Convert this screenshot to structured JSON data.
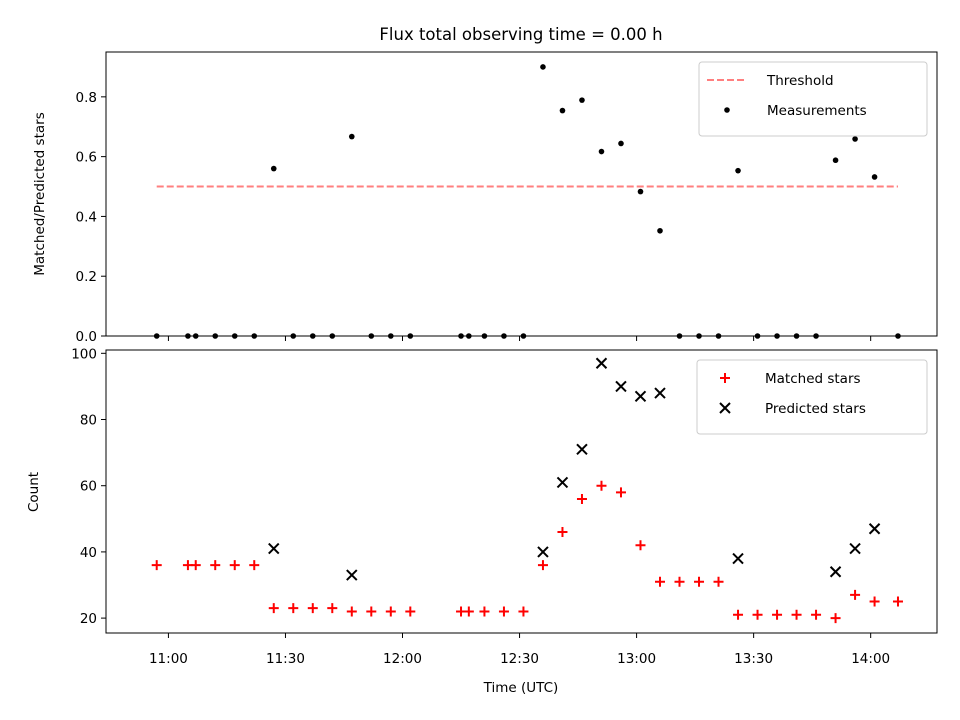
{
  "colors": {
    "threshold": "#ff7f7f",
    "measurements": "#000000",
    "matched": "#ff0000",
    "predicted": "#000000"
  },
  "chart_data": [
    {
      "type": "scatter",
      "title": "Flux total observing time = 0.00 h",
      "xlabel": "",
      "ylabel": "Matched/Predicted stars",
      "xlim": [
        "10:44",
        "14:17"
      ],
      "ylim": [
        0,
        0.95
      ],
      "yticks": [
        0.0,
        0.2,
        0.4,
        0.6,
        0.8
      ],
      "yticklabels": [
        "0.0",
        "0.2",
        "0.4",
        "0.6",
        "0.8"
      ],
      "legend": "top-right",
      "grid": false,
      "series": [
        {
          "name": "Threshold",
          "kind": "line",
          "style": "dashed",
          "x": [
            "10:57",
            "14:07"
          ],
          "y": [
            0.5,
            0.5
          ]
        },
        {
          "name": "Measurements",
          "kind": "scatter",
          "marker": "dot",
          "x": [
            "10:57",
            "11:05",
            "11:07",
            "11:12",
            "11:17",
            "11:22",
            "11:27",
            "11:32",
            "11:37",
            "11:42",
            "11:47",
            "11:52",
            "11:57",
            "12:02",
            "12:15",
            "12:17",
            "12:21",
            "12:26",
            "12:31",
            "12:36",
            "12:41",
            "12:46",
            "12:51",
            "12:56",
            "13:01",
            "13:06",
            "13:11",
            "13:16",
            "13:21",
            "13:26",
            "13:31",
            "13:36",
            "13:41",
            "13:46",
            "13:51",
            "13:56",
            "14:01",
            "14:07"
          ],
          "y": [
            0,
            0,
            0,
            0,
            0,
            0,
            0.56,
            0,
            0,
            0,
            0.667,
            0,
            0,
            0,
            0,
            0,
            0,
            0,
            0,
            0.9,
            0.754,
            0.789,
            0.617,
            0.644,
            0.483,
            0.352,
            0,
            0,
            0,
            0.553,
            0,
            0,
            0,
            0,
            0.588,
            0.659,
            0.532,
            0
          ]
        }
      ]
    },
    {
      "type": "scatter",
      "title": "",
      "xlabel": "Time (UTC)",
      "ylabel": "Count",
      "xlim": [
        "10:44",
        "14:17"
      ],
      "ylim": [
        15.5,
        101
      ],
      "yticks": [
        20,
        40,
        60,
        80,
        100
      ],
      "yticklabels": [
        "20",
        "40",
        "60",
        "80",
        "100"
      ],
      "xticks": [
        "11:00",
        "11:30",
        "12:00",
        "12:30",
        "13:00",
        "13:30",
        "14:00"
      ],
      "xticklabels": [
        "11:00",
        "11:30",
        "12:00",
        "12:30",
        "13:00",
        "13:30",
        "14:00"
      ],
      "legend": "top-right",
      "grid": false,
      "series": [
        {
          "name": "Matched stars",
          "kind": "scatter",
          "marker": "plus",
          "x": [
            "10:57",
            "11:05",
            "11:07",
            "11:12",
            "11:17",
            "11:22",
            "11:27",
            "11:32",
            "11:37",
            "11:42",
            "11:47",
            "11:52",
            "11:57",
            "12:02",
            "12:15",
            "12:17",
            "12:21",
            "12:26",
            "12:31",
            "12:36",
            "12:41",
            "12:46",
            "12:51",
            "12:56",
            "13:01",
            "13:06",
            "13:11",
            "13:16",
            "13:21",
            "13:26",
            "13:31",
            "13:36",
            "13:41",
            "13:46",
            "13:51",
            "13:56",
            "14:01",
            "14:07"
          ],
          "y": [
            36,
            36,
            36,
            36,
            36,
            36,
            23,
            23,
            23,
            23,
            22,
            22,
            22,
            22,
            22,
            22,
            22,
            22,
            22,
            36,
            46,
            56,
            60,
            58,
            42,
            31,
            31,
            31,
            31,
            21,
            21,
            21,
            21,
            21,
            20,
            27,
            25,
            25
          ]
        },
        {
          "name": "Predicted stars",
          "kind": "scatter",
          "marker": "x",
          "x": [
            "11:27",
            "11:47",
            "12:36",
            "12:41",
            "12:46",
            "12:51",
            "12:56",
            "13:01",
            "13:06",
            "13:26",
            "13:51",
            "13:56",
            "14:01"
          ],
          "y": [
            41,
            33,
            40,
            61,
            71,
            97,
            90,
            87,
            88,
            38,
            34,
            41,
            47
          ]
        }
      ]
    }
  ]
}
